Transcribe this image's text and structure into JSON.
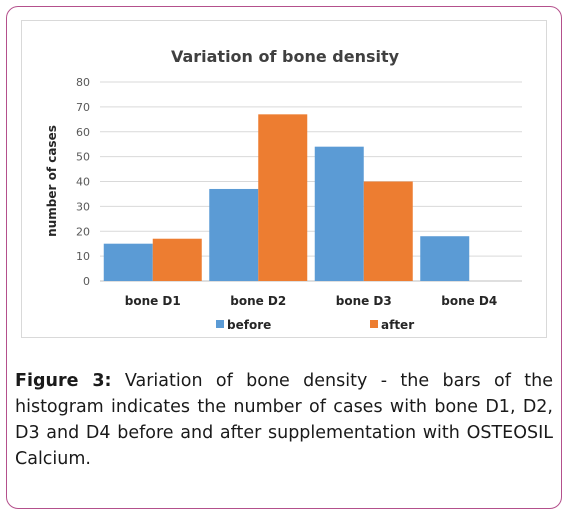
{
  "chart_data": {
    "type": "bar",
    "title": "Variation of bone density",
    "xlabel": "",
    "ylabel": "number of cases",
    "categories": [
      "bone D1",
      "bone D2",
      "bone D3",
      "bone D4"
    ],
    "series": [
      {
        "name": "before",
        "values": [
          15,
          37,
          54,
          18
        ]
      },
      {
        "name": "after",
        "values": [
          17,
          67,
          40,
          0
        ]
      }
    ],
    "ylim": [
      0,
      80
    ],
    "yticks": [
      0,
      10,
      20,
      30,
      40,
      50,
      60,
      70,
      80
    ],
    "grid": true,
    "legend": "bottom",
    "colors": {
      "before": "#5b9bd5",
      "after": "#ed7d31",
      "grid": "#d9d9d9",
      "axis": "#bfbfbf"
    }
  },
  "caption": {
    "label": "Figure 3:",
    "text": "Variation of bone density - the bars of the histogram indicates the number of cases with bone D1, D2, D3 and D4 before and after supplementation with OSTEOSIL Calcium."
  }
}
